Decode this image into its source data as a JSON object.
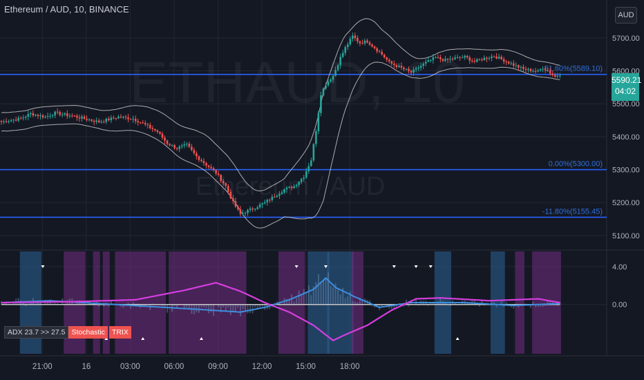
{
  "header": {
    "symbol_title": "Ethereum / AUD, 10, BINANCE",
    "currency_button": "AUD",
    "watermark_main": "ETHAUD, 10",
    "watermark_sub": "Ethereum / AUD"
  },
  "price_badge": {
    "price": "5590.21",
    "countdown": "04:02"
  },
  "colors": {
    "background": "#141823",
    "up": "#26a69a",
    "down": "#ef5350",
    "fib_line": "#2962ff",
    "bands": "#c8c8c8",
    "bull_zone": "#2a5d8c",
    "bear_zone": "#6b2c7a",
    "trix": "#d63ee0",
    "signal": "#3d8fe0",
    "zero_line": "#c8c8c8"
  },
  "legend": {
    "adx": "ADX 23.7 >> 27.5",
    "stochastic": "Stochastic",
    "trix": "TRIX"
  },
  "chart_data": {
    "type": "candlestick",
    "title": "Ethereum / AUD, 10, BINANCE",
    "price_axis": {
      "ticks": [
        "5100.00",
        "5200.00",
        "5300.00",
        "5400.00",
        "5500.00",
        "5600.00",
        "5700.00"
      ],
      "ylim": [
        5060,
        5815
      ]
    },
    "time_axis": {
      "ticks": [
        {
          "label": "21:00",
          "hours": 21
        },
        {
          "label": "16",
          "hours": 24
        },
        {
          "label": "03:00",
          "hours": 27
        },
        {
          "label": "06:00",
          "hours": 30
        },
        {
          "label": "09:00",
          "hours": 33
        },
        {
          "label": "12:00",
          "hours": 36
        },
        {
          "label": "15:00",
          "hours": 39
        },
        {
          "label": "18:00",
          "hours": 42
        }
      ],
      "start_hours": 18.2,
      "candle_minutes": 10
    },
    "fib_levels": [
      {
        "label": "61.60%(5589.10)",
        "value": 5589.1
      },
      {
        "label": "0.00%(5300.00)",
        "value": 5300.0
      },
      {
        "label": "-11.80%(5155.45)",
        "value": 5155.45
      }
    ],
    "close_anchors": [
      [
        0,
        5445
      ],
      [
        8,
        5455
      ],
      [
        12,
        5470
      ],
      [
        18,
        5460
      ],
      [
        22,
        5472
      ],
      [
        30,
        5462
      ],
      [
        34,
        5455
      ],
      [
        40,
        5445
      ],
      [
        48,
        5460
      ],
      [
        54,
        5455
      ],
      [
        58,
        5440
      ],
      [
        64,
        5415
      ],
      [
        68,
        5380
      ],
      [
        72,
        5365
      ],
      [
        76,
        5375
      ],
      [
        80,
        5340
      ],
      [
        84,
        5315
      ],
      [
        88,
        5290
      ],
      [
        92,
        5250
      ],
      [
        95,
        5200
      ],
      [
        98,
        5165
      ],
      [
        101,
        5175
      ],
      [
        104,
        5185
      ],
      [
        108,
        5200
      ],
      [
        112,
        5220
      ],
      [
        116,
        5240
      ],
      [
        120,
        5250
      ],
      [
        124,
        5280
      ],
      [
        127,
        5330
      ],
      [
        129,
        5420
      ],
      [
        131,
        5530
      ],
      [
        133,
        5560
      ],
      [
        136,
        5585
      ],
      [
        139,
        5640
      ],
      [
        141,
        5670
      ],
      [
        144,
        5705
      ],
      [
        147,
        5685
      ],
      [
        150,
        5690
      ],
      [
        153,
        5670
      ],
      [
        156,
        5650
      ],
      [
        159,
        5625
      ],
      [
        162,
        5615
      ],
      [
        165,
        5605
      ],
      [
        168,
        5595
      ],
      [
        171,
        5610
      ],
      [
        174,
        5625
      ],
      [
        178,
        5640
      ],
      [
        182,
        5632
      ],
      [
        186,
        5638
      ],
      [
        190,
        5642
      ],
      [
        194,
        5628
      ],
      [
        198,
        5638
      ],
      [
        202,
        5645
      ],
      [
        206,
        5632
      ],
      [
        210,
        5618
      ],
      [
        214,
        5605
      ],
      [
        217,
        5602
      ],
      [
        220,
        5598
      ],
      [
        222,
        5610
      ],
      [
        224,
        5600
      ],
      [
        227,
        5582
      ],
      [
        229,
        5590
      ]
    ],
    "band_halfwidth": [
      [
        0,
        28
      ],
      [
        40,
        28
      ],
      [
        60,
        42
      ],
      [
        84,
        55
      ],
      [
        98,
        55
      ],
      [
        116,
        58
      ],
      [
        126,
        110
      ],
      [
        132,
        165
      ],
      [
        144,
        95
      ],
      [
        156,
        50
      ],
      [
        170,
        30
      ],
      [
        200,
        28
      ],
      [
        229,
        22
      ]
    ],
    "oscillator": {
      "ticks": [
        "4.00",
        "0.00"
      ],
      "ylim": [
        -5.2,
        5.6
      ],
      "trix_anchors": [
        [
          0,
          0.2
        ],
        [
          30,
          0.3
        ],
        [
          55,
          0.5
        ],
        [
          75,
          1.5
        ],
        [
          88,
          2.3
        ],
        [
          98,
          1.4
        ],
        [
          108,
          0.2
        ],
        [
          118,
          -0.8
        ],
        [
          128,
          -2.2
        ],
        [
          136,
          -3.8
        ],
        [
          140,
          -3.3
        ],
        [
          150,
          -2.2
        ],
        [
          160,
          -0.6
        ],
        [
          170,
          0.6
        ],
        [
          180,
          0.7
        ],
        [
          200,
          0.4
        ],
        [
          210,
          0.5
        ],
        [
          220,
          0.6
        ],
        [
          229,
          0.2
        ]
      ],
      "signal_anchors": [
        [
          0,
          0.2
        ],
        [
          20,
          0.4
        ],
        [
          40,
          0.1
        ],
        [
          60,
          -0.2
        ],
        [
          80,
          -0.5
        ],
        [
          98,
          -0.8
        ],
        [
          108,
          -0.3
        ],
        [
          118,
          0.5
        ],
        [
          128,
          1.6
        ],
        [
          133,
          2.8
        ],
        [
          137,
          1.8
        ],
        [
          145,
          0.8
        ],
        [
          155,
          -0.3
        ],
        [
          168,
          0.2
        ],
        [
          190,
          0.2
        ],
        [
          210,
          -0.1
        ],
        [
          229,
          0.1
        ]
      ],
      "zones": [
        {
          "from": 8,
          "to": 16,
          "kind": "bull"
        },
        {
          "from": 26,
          "to": 34,
          "kind": "bear"
        },
        {
          "from": 38,
          "to": 40,
          "kind": "bear"
        },
        {
          "from": 42,
          "to": 44,
          "kind": "bear"
        },
        {
          "from": 47,
          "to": 67,
          "kind": "bear"
        },
        {
          "from": 69,
          "to": 100,
          "kind": "bear"
        },
        {
          "from": 114,
          "to": 124,
          "kind": "bear"
        },
        {
          "from": 126,
          "to": 134,
          "kind": "bull"
        },
        {
          "from": 134,
          "to": 144,
          "kind": "bull"
        },
        {
          "from": 144,
          "to": 148,
          "kind": "bear"
        },
        {
          "from": 178,
          "to": 184,
          "kind": "bull"
        },
        {
          "from": 201,
          "to": 206,
          "kind": "bull"
        },
        {
          "from": 211,
          "to": 214,
          "kind": "bear"
        },
        {
          "from": 218,
          "to": 229,
          "kind": "bear"
        }
      ],
      "markers_down": [
        17,
        121,
        133,
        161,
        170,
        176
      ],
      "markers_up": [
        43,
        58,
        82,
        187
      ]
    }
  }
}
